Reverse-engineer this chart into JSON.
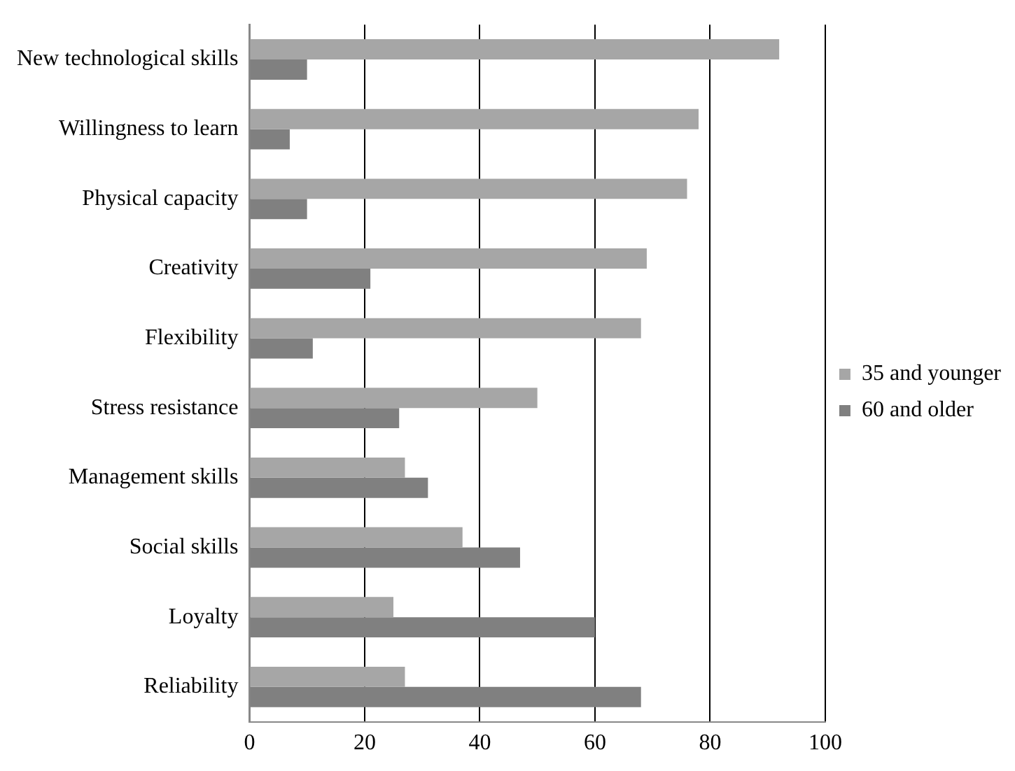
{
  "chart_data": {
    "type": "bar",
    "orientation": "horizontal",
    "categories": [
      "New technological skills",
      "Willingness to learn",
      "Physical capacity",
      "Creativity",
      "Flexibility",
      "Stress resistance",
      "Management skills",
      "Social skills",
      "Loyalty",
      "Reliability"
    ],
    "series": [
      {
        "name": "35 and younger",
        "color": "#a6a6a6",
        "values": [
          92,
          78,
          76,
          69,
          68,
          50,
          27,
          37,
          25,
          27
        ]
      },
      {
        "name": "60 and older",
        "color": "#808080",
        "values": [
          10,
          7,
          10,
          21,
          11,
          26,
          31,
          47,
          60,
          68
        ]
      }
    ],
    "xlim": [
      0,
      100
    ],
    "xticks": [
      0,
      20,
      40,
      60,
      80,
      100
    ],
    "grid": "x",
    "legend": "right"
  }
}
